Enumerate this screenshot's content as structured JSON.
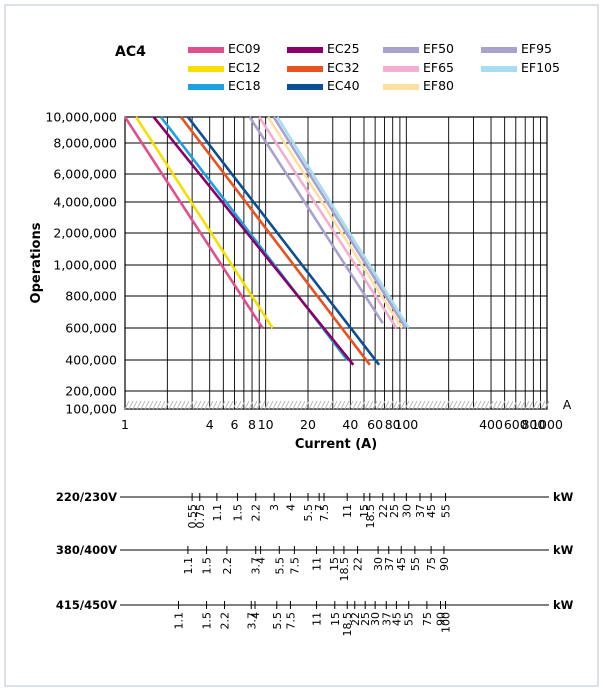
{
  "chart_data": {
    "type": "line",
    "title": "AC4",
    "xlabel": "Current (A)",
    "ylabel": "Operations",
    "x_unit": "A",
    "x_scale": "log",
    "xlim": [
      1,
      1000
    ],
    "x_ticks": [
      1,
      4,
      6,
      8,
      10,
      20,
      40,
      60,
      80,
      100,
      400,
      600,
      800,
      1000
    ],
    "x_tick_labels": [
      "1",
      "4",
      "6",
      "8",
      "10",
      "20",
      "40",
      "60",
      "80",
      "100",
      "400",
      "600",
      "800",
      "1000"
    ],
    "ylim": [
      100000,
      10000000
    ],
    "y_tick_labels": [
      "10,000,000",
      "8,000,000",
      "6,000,000",
      "4,000,000",
      "2,000,000",
      "1,000,000",
      "800,000",
      "600,000",
      "400,000",
      "200,000",
      "100,000"
    ],
    "grid": true,
    "legend_position": "top",
    "series": [
      {
        "name": "EC09",
        "color": "#e0508e",
        "x": [
          1.0,
          9.5
        ],
        "y": [
          10000000,
          600000
        ]
      },
      {
        "name": "EC12",
        "color": "#f7df00",
        "x": [
          1.2,
          11.2
        ],
        "y": [
          10000000,
          600000
        ]
      },
      {
        "name": "EC18",
        "color": "#1aa3de",
        "x": [
          1.8,
          38.0
        ],
        "y": [
          10000000,
          400000
        ]
      },
      {
        "name": "EC25",
        "color": "#8b0068",
        "x": [
          1.6,
          42.0
        ],
        "y": [
          10000000,
          370000
        ]
      },
      {
        "name": "EC32",
        "color": "#e8521f",
        "x": [
          2.5,
          55.0
        ],
        "y": [
          10000000,
          370000
        ]
      },
      {
        "name": "EC40",
        "color": "#0b4f94",
        "x": [
          2.8,
          64.0
        ],
        "y": [
          10000000,
          370000
        ]
      },
      {
        "name": "EF50",
        "color": "#a9a1cf",
        "x": [
          7.7,
          68.0
        ],
        "y": [
          10000000,
          640000
        ]
      },
      {
        "name": "EF65",
        "color": "#f5aecf",
        "x": [
          9.0,
          85.0
        ],
        "y": [
          10000000,
          600000
        ]
      },
      {
        "name": "EF80",
        "color": "#fbe0a0",
        "x": [
          10.4,
          93.0
        ],
        "y": [
          10000000,
          600000
        ]
      },
      {
        "name": "EF95",
        "color": "#a9a1cf",
        "x": [
          11.4,
          99.0
        ],
        "y": [
          10000000,
          600000
        ]
      },
      {
        "name": "EF105",
        "color": "#a6ddf0",
        "x": [
          12.1,
          104.0
        ],
        "y": [
          10000000,
          600000
        ]
      }
    ],
    "power_scales": [
      {
        "voltage": "220/230V",
        "unit": "kW",
        "labels": [
          "0.55",
          "0.75",
          "1.1",
          "1.5",
          "2.2",
          "3",
          "4",
          "5.5",
          "7",
          "7.5",
          "11",
          "15",
          "18.5",
          "22",
          "25",
          "30",
          "37",
          "45",
          "55"
        ],
        "currents": [
          3,
          3.4,
          4.5,
          6.3,
          8.5,
          11.5,
          15,
          20,
          24,
          26,
          38,
          50,
          55,
          68,
          82,
          100,
          125,
          150,
          190
        ]
      },
      {
        "voltage": "380/400V",
        "unit": "kW",
        "labels": [
          "1.1",
          "1.5",
          "2.2",
          "3.7",
          "4",
          "5.5",
          "7.5",
          "11",
          "15",
          "18.5",
          "22",
          "30",
          "37",
          "45",
          "55",
          "75",
          "90"
        ],
        "currents": [
          2.8,
          3.8,
          5.3,
          8.5,
          9.2,
          12.5,
          16,
          23,
          30.5,
          36,
          45,
          63,
          75,
          92,
          115,
          150,
          185
        ]
      },
      {
        "voltage": "415/450V",
        "unit": "kW",
        "labels": [
          "1.1",
          "1.5",
          "2.2",
          "3.7",
          "4",
          "5.5",
          "7.5",
          "11",
          "15",
          "18.5",
          "22",
          "25",
          "30",
          "37",
          "45",
          "55",
          "75",
          "90",
          "100"
        ],
        "currents": [
          2.4,
          3.8,
          5.1,
          7.9,
          8.4,
          12,
          15,
          23,
          31,
          38,
          43,
          51,
          60,
          72,
          85,
          104,
          140,
          175,
          190
        ]
      }
    ]
  }
}
